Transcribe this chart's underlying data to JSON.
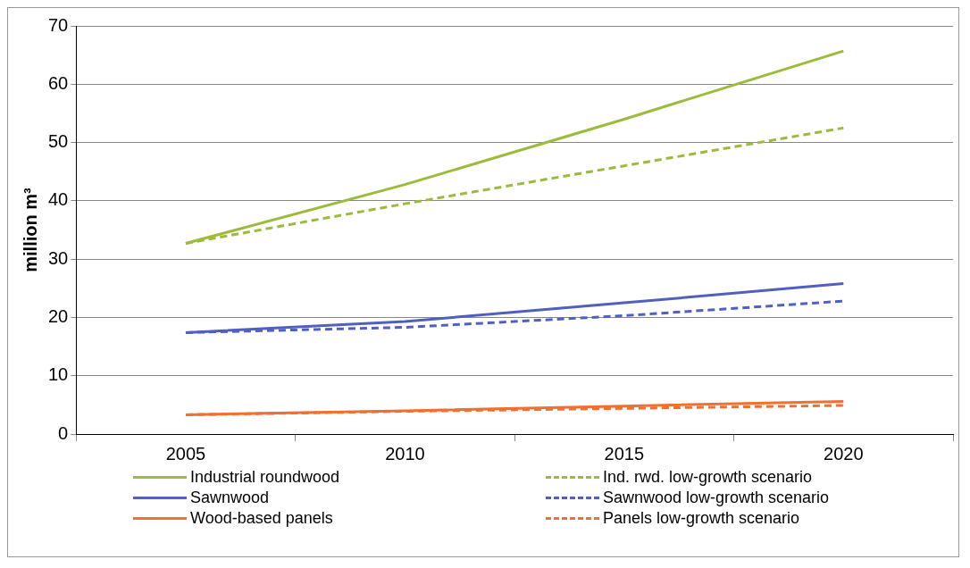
{
  "chart_data": {
    "type": "line",
    "ylabel": "million m³",
    "categories": [
      "2005",
      "2010",
      "2015",
      "2020"
    ],
    "ylim": [
      0,
      70
    ],
    "yticks": [
      0,
      10,
      20,
      30,
      40,
      50,
      60,
      70
    ],
    "grid": "y",
    "legend": "bottom",
    "marker": "none",
    "series": [
      {
        "name": "Industrial roundwood",
        "color": "#9bbb3b",
        "line_style": "solid",
        "values": [
          32.7,
          42.8,
          54,
          65.7
        ]
      },
      {
        "name": "Ind. rwd. low-growth scenario",
        "color": "#9bbb3b",
        "line_style": "dashed",
        "values": [
          32.7,
          39.5,
          46,
          52.5
        ]
      },
      {
        "name": "Sawnwood",
        "color": "#5060c0",
        "line_style": "solid",
        "values": [
          17.4,
          19.3,
          22.5,
          25.8
        ]
      },
      {
        "name": "Sawnwood low-growth scenario",
        "color": "#5060c0",
        "line_style": "dashed",
        "values": [
          17.4,
          18.3,
          20.3,
          22.8
        ]
      },
      {
        "name": "Wood-based panels",
        "color": "#f07030",
        "line_style": "solid",
        "values": [
          3.3,
          4.0,
          4.8,
          5.6
        ]
      },
      {
        "name": "Panels low-growth scenario",
        "color": "#f07030",
        "line_style": "dashed",
        "values": [
          3.3,
          3.9,
          4.4,
          4.9
        ]
      }
    ]
  }
}
